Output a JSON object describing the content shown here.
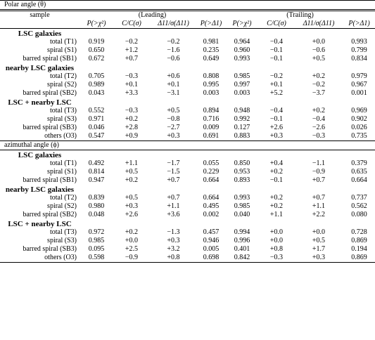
{
  "polar_title": "Polar angle (θ)",
  "azimuthal_title": "azimuthal angle (ϕ)",
  "sample_label": "sample",
  "leading_label": "(Leading)",
  "trailing_label": "(Trailing)",
  "column_headers": [
    "P(>χ²)",
    "C/C(σ)",
    "Δ11/σ(Δ11)",
    "P(>Δ1)",
    "P(>χ²)",
    "C/C(σ)",
    "Δ11/σ(Δ11)",
    "P(>Δ1)"
  ],
  "polar": {
    "groups": [
      {
        "title": "LSC galaxies",
        "rows": [
          {
            "label": "total (T1)",
            "values": [
              "0.919",
              "−0.2",
              "−0.2",
              "0.981",
              "0.964",
              "−0.4",
              "+0.0",
              "0.993"
            ]
          },
          {
            "label": "spiral (S1)",
            "values": [
              "0.650",
              "+1.2",
              "−1.6",
              "0.235",
              "0.960",
              "−0.1",
              "−0.6",
              "0.799"
            ]
          },
          {
            "label": "barred spiral (SB1)",
            "values": [
              "0.672",
              "+0.7",
              "−0.6",
              "0.649",
              "0.993",
              "−0.1",
              "+0.5",
              "0.834"
            ]
          }
        ]
      },
      {
        "title": "nearby LSC galaxies",
        "rows": [
          {
            "label": "total (T2)",
            "values": [
              "0.705",
              "−0.3",
              "+0.6",
              "0.808",
              "0.985",
              "−0.2",
              "+0.2",
              "0.979"
            ]
          },
          {
            "label": "spiral (S2)",
            "values": [
              "0.989",
              "+0.1",
              "+0.1",
              "0.995",
              "0.997",
              "+0.1",
              "−0.2",
              "0.967"
            ]
          },
          {
            "label": "barred spiral (SB2)",
            "values": [
              "0.043",
              "+3.3",
              "−3.1",
              "0.003",
              "0.003",
              "+5.2",
              "−3.7",
              "0.001"
            ]
          }
        ]
      },
      {
        "title": "LSC + nearby LSC",
        "rows": [
          {
            "label": "total (T3)",
            "values": [
              "0.552",
              "−0.3",
              "+0.5",
              "0.894",
              "0.948",
              "−0.4",
              "+0.2",
              "0.969"
            ]
          },
          {
            "label": "spiral (S3)",
            "values": [
              "0.971",
              "+0.2",
              "−0.8",
              "0.716",
              "0.992",
              "−0.1",
              "−0.4",
              "0.902"
            ]
          },
          {
            "label": "barred spiral (SB3)",
            "values": [
              "0.046",
              "+2.8",
              "−2.7",
              "0.009",
              "0.127",
              "+2.6",
              "−2.6",
              "0.026"
            ]
          },
          {
            "label": "others (O3)",
            "values": [
              "0.547",
              "+0.9",
              "+0.3",
              "0.691",
              "0.883",
              "+0.3",
              "−0.3",
              "0.735"
            ]
          }
        ]
      }
    ]
  },
  "azimuthal": {
    "groups": [
      {
        "title": "LSC galaxies",
        "rows": [
          {
            "label": "total (T1)",
            "values": [
              "0.492",
              "+1.1",
              "−1.7",
              "0.055",
              "0.850",
              "+0.4",
              "−1.1",
              "0.379"
            ]
          },
          {
            "label": "spiral (S1)",
            "values": [
              "0.814",
              "+0.5",
              "−1.5",
              "0.229",
              "0.953",
              "+0.2",
              "−0.9",
              "0.635"
            ]
          },
          {
            "label": "barred spiral (SB1)",
            "values": [
              "0.947",
              "+0.2",
              "+0.7",
              "0.664",
              "0.893",
              "−0.1",
              "+0.7",
              "0.664"
            ]
          }
        ]
      },
      {
        "title": "nearby LSC galaxies",
        "rows": [
          {
            "label": "total (T2)",
            "values": [
              "0.839",
              "+0.5",
              "+0.7",
              "0.664",
              "0.993",
              "+0.2",
              "+0.7",
              "0.737"
            ]
          },
          {
            "label": "spiral (S2)",
            "values": [
              "0.980",
              "+0.3",
              "+1.1",
              "0.495",
              "0.985",
              "+0.2",
              "+1.1",
              "0.562"
            ]
          },
          {
            "label": "barred spiral (SB2)",
            "values": [
              "0.048",
              "+2.6",
              "+3.6",
              "0.002",
              "0.040",
              "+1.1",
              "+2.2",
              "0.080"
            ]
          }
        ]
      },
      {
        "title": "LSC + nearby LSC",
        "rows": [
          {
            "label": "total (T3)",
            "values": [
              "0.972",
              "+0.2",
              "−1.3",
              "0.457",
              "0.994",
              "+0.0",
              "+0.0",
              "0.728"
            ]
          },
          {
            "label": "spiral (S3)",
            "values": [
              "0.985",
              "+0.0",
              "+0.3",
              "0.946",
              "0.996",
              "+0.0",
              "+0.5",
              "0.869"
            ]
          },
          {
            "label": "barred spiral (SB3)",
            "values": [
              "0.095",
              "+2.5",
              "+3.2",
              "0.005",
              "0.401",
              "+0.8",
              "+1.7",
              "0.194"
            ]
          },
          {
            "label": "others (O3)",
            "values": [
              "0.598",
              "−0.9",
              "+0.8",
              "0.698",
              "0.842",
              "−0.3",
              "+0.3",
              "0.869"
            ]
          }
        ]
      }
    ]
  }
}
